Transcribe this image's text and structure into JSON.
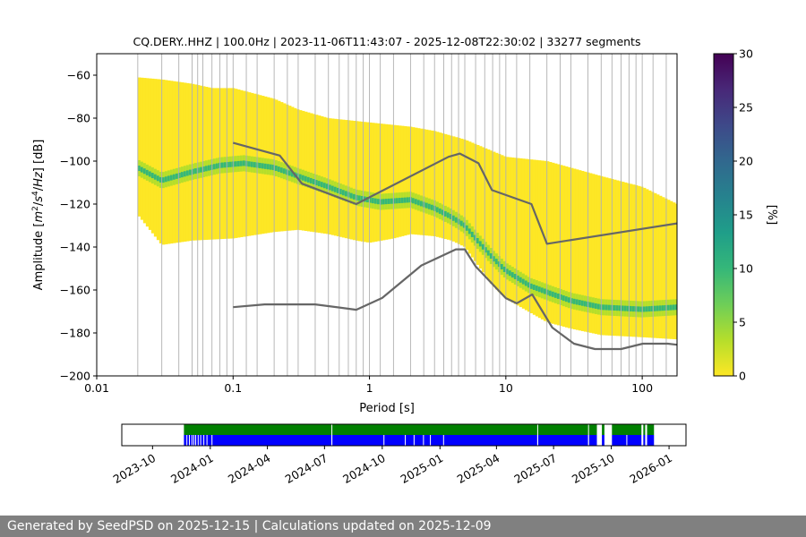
{
  "chart_data": {
    "type": "heatmap",
    "title": "CQ.DERY..HHZ | 100.0Hz | 2023-11-06T11:43:07 - 2025-12-08T22:30:02 | 33277 segments",
    "xlabel": "Period [s]",
    "ylabel_parts": [
      "Amplitude [",
      "m",
      "2",
      "/",
      "s",
      "4",
      "/",
      "Hz",
      "] [dB]"
    ],
    "xscale": "log",
    "xlim": [
      0.01,
      180
    ],
    "ylim": [
      -200,
      -50
    ],
    "x_ticks": [
      0.01,
      0.1,
      1,
      10,
      100
    ],
    "x_tick_labels": [
      "0.01",
      "0.1",
      "1",
      "10",
      "100"
    ],
    "y_ticks": [
      -200,
      -180,
      -160,
      -140,
      -120,
      -100,
      -80,
      -60
    ],
    "y_tick_labels": [
      "−200",
      "−180",
      "−160",
      "−140",
      "−120",
      "−100",
      "−80",
      "−60"
    ],
    "period_gridlines": [
      0.02,
      0.03,
      0.04,
      0.05,
      0.055,
      0.06,
      0.07,
      0.08,
      0.09,
      0.1,
      0.125,
      0.15,
      0.2,
      0.25,
      0.3,
      0.4,
      0.5,
      0.6,
      0.7,
      0.8,
      0.9,
      1.0,
      1.2,
      1.5,
      2,
      2.5,
      3,
      3.5,
      4,
      4.5,
      5,
      6,
      7,
      8,
      9,
      10,
      12,
      15,
      20,
      25,
      30,
      40,
      50,
      60,
      70,
      80,
      90,
      100,
      120,
      150
    ],
    "psd_mode": {
      "period": [
        0.02,
        0.03,
        0.05,
        0.08,
        0.12,
        0.2,
        0.3,
        0.5,
        0.8,
        1.2,
        2,
        3,
        4,
        5,
        6,
        8,
        10,
        15,
        20,
        30,
        50,
        100,
        180
      ],
      "db": [
        -103,
        -109,
        -105,
        -102,
        -101,
        -103,
        -107,
        -112,
        -117,
        -119,
        -118,
        -122,
        -126,
        -130,
        -136,
        -145,
        -151,
        -158,
        -161,
        -165,
        -168,
        -169,
        -168
      ]
    },
    "psd_upper": {
      "period": [
        0.02,
        0.03,
        0.05,
        0.07,
        0.1,
        0.2,
        0.3,
        0.5,
        1,
        2,
        3,
        5,
        10,
        20,
        50,
        100,
        180
      ],
      "db": [
        -61,
        -62,
        -64,
        -66,
        -66,
        -71,
        -76,
        -80,
        -82,
        -84,
        -86,
        -90,
        -98,
        -100,
        -107,
        -112,
        -120
      ]
    },
    "psd_lower": {
      "period": [
        0.02,
        0.03,
        0.05,
        0.1,
        0.2,
        0.3,
        0.5,
        0.8,
        1,
        1.5,
        2,
        3,
        4,
        5,
        8,
        10,
        20,
        30,
        50,
        100,
        180
      ],
      "db": [
        -125,
        -139,
        -137,
        -136,
        -133,
        -132,
        -134,
        -137,
        -138,
        -136,
        -134,
        -135,
        -137,
        -140,
        -158,
        -164,
        -175,
        -178,
        -181,
        -182,
        -183
      ]
    },
    "nhnm": {
      "period": [
        0.1,
        0.22,
        0.32,
        0.8,
        3.8,
        4.6,
        6.3,
        7.9,
        15.4,
        20,
        180
      ],
      "db": [
        -91.5,
        -97.4,
        -110.5,
        -120,
        -98,
        -96.5,
        -101,
        -113.5,
        -120,
        -138.5,
        -129
      ]
    },
    "nlnm": {
      "period": [
        0.1,
        0.17,
        0.4,
        0.8,
        1.24,
        2.4,
        4.3,
        5.0,
        6.0,
        10.0,
        12.0,
        15.6,
        21.9,
        31.6,
        45,
        70,
        101,
        154,
        180
      ],
      "db": [
        -168,
        -166.7,
        -166.7,
        -169.2,
        -163.7,
        -148.6,
        -141.1,
        -141.1,
        -149,
        -163.8,
        -166.2,
        -162.1,
        -177.5,
        -185,
        -187.5,
        -187.5,
        -185,
        -185,
        -185.5
      ]
    },
    "colorbar": {
      "label": "[%]",
      "min": 0,
      "max": 30,
      "ticks": [
        0,
        5,
        10,
        15,
        20,
        25,
        30
      ],
      "tick_labels": [
        "0",
        "5",
        "10",
        "15",
        "20",
        "25",
        "30"
      ],
      "colors": [
        "#fde725",
        "#b5de2b",
        "#6ece58",
        "#35b779",
        "#1f9e89",
        "#26828e",
        "#31688e",
        "#3e4989",
        "#482878",
        "#440154"
      ]
    },
    "colors": {
      "low": "#fde725",
      "mid": "#b5de2b",
      "mode": "#35b779",
      "model_line": "#666666"
    },
    "timeline": {
      "start_date": "2023-08-13",
      "end_date": "2026-01-28",
      "data_start": "2023-11-20",
      "data_end": "2025-12-08",
      "ticks": [
        "2023-10-01",
        "2024-01-01",
        "2024-04-01",
        "2024-07-01",
        "2024-10-01",
        "2025-01-01",
        "2025-04-01",
        "2025-07-01",
        "2025-10-01",
        "2026-01-01"
      ],
      "tick_labels": [
        "2023-10",
        "2024-01",
        "2024-04",
        "2024-07",
        "2024-10",
        "2025-01",
        "2025-04",
        "2025-07",
        "2025-10",
        "2026-01"
      ],
      "coverage_gaps": [
        [
          "2025-09-08",
          "2025-09-16"
        ],
        [
          "2025-09-20",
          "2025-10-02"
        ],
        [
          "2025-11-18",
          "2025-11-21"
        ],
        [
          "2025-11-24",
          "2025-11-27"
        ]
      ],
      "thin_gaps": [
        "2024-07-12",
        "2025-06-05",
        "2025-08-25"
      ],
      "blue_gaps": [
        "2023-11-24",
        "2023-11-28",
        "2023-12-02",
        "2023-12-05",
        "2023-12-08",
        "2023-12-12",
        "2023-12-16",
        "2023-12-21",
        "2023-12-26",
        "2024-01-03",
        "2024-07-12",
        "2024-10-03",
        "2024-11-06",
        "2024-11-20",
        "2024-12-05",
        "2024-12-16",
        "2025-01-06",
        "2025-06-05",
        "2025-08-25",
        "2025-10-25"
      ],
      "green_color": "#008000",
      "blue_color": "#0000ff"
    }
  },
  "footer": {
    "text": "Generated by SeedPSD on 2025-12-15 | Calculations updated on 2025-12-09"
  }
}
